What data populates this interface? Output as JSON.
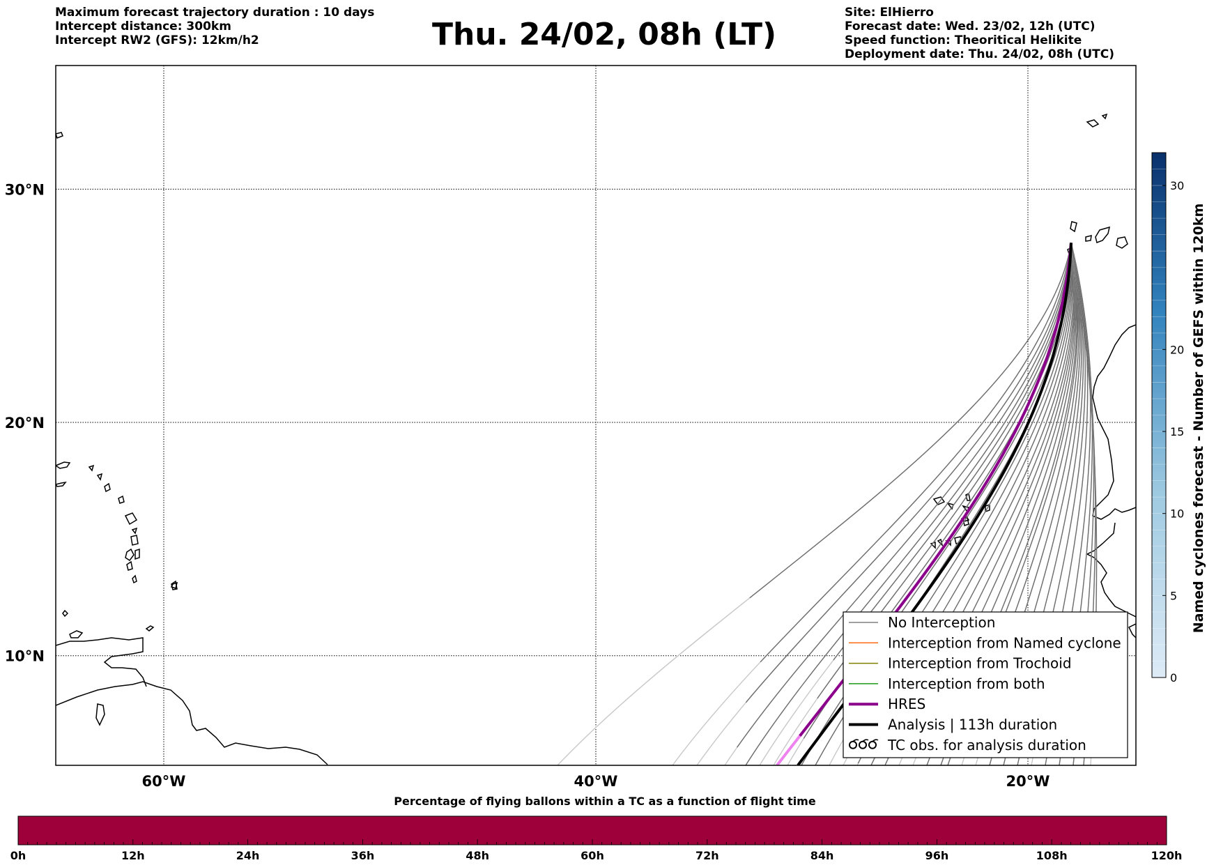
{
  "header_left": [
    "Maximum forecast trajectory duration : 10 days",
    "Intercept distance: 300km",
    "Intercept RW2 (GFS):  12km/h2"
  ],
  "title": "Thu. 24/02, 08h (LT)",
  "header_right": [
    "Site: ElHierro",
    "Forecast date: Wed. 23/02, 12h (UTC)",
    "Speed function: Theoritical Helikite",
    "Deployment date: Thu. 24/02, 08h (UTC)"
  ],
  "map": {
    "lat_labels": [
      "30°N",
      "20°N",
      "10°N"
    ],
    "lon_labels": [
      "60°W",
      "40°W",
      "20°W"
    ],
    "lat_values": [
      30,
      20,
      10
    ],
    "lon_values": [
      -60,
      -40,
      -20
    ],
    "extent": {
      "lon_min": -65,
      "lon_max": -15,
      "lat_min": 5.3,
      "lat_max": 35.3
    },
    "site": {
      "name": "ElHierro",
      "lon": -18.0,
      "lat": 27.7
    }
  },
  "legend": {
    "entries": [
      {
        "label": "No Interception",
        "color": "#808080",
        "style": "thin-line"
      },
      {
        "label": "Interception from Named cyclone",
        "color": "#ff6a13",
        "style": "thin-line"
      },
      {
        "label": "Interception from Trochoid",
        "color": "#808000",
        "style": "thin-line"
      },
      {
        "label": "Interception from both",
        "color": "#1a9a1a",
        "style": "thin-line"
      },
      {
        "label": "HRES",
        "color": "#8b008b",
        "style": "thick-line"
      },
      {
        "label": "Analysis | 113h duration",
        "color": "#000000",
        "style": "thick-line"
      },
      {
        "label": "TC obs. for analysis duration",
        "color": "#000000",
        "style": "cyclone-symbols"
      }
    ]
  },
  "colorbar_right": {
    "label": "Named cyclones forecast - Number of GEFS within 120km",
    "ticks": [
      "0",
      "5",
      "10",
      "15",
      "20",
      "30"
    ],
    "tick_values": [
      0,
      5,
      10,
      15,
      20,
      30
    ],
    "min": 0,
    "max": 32,
    "color_low": "#deebf7",
    "color_high": "#08306b"
  },
  "time_bar": {
    "title": "Percentage of flying ballons within a TC as a function of flight time",
    "ticks": [
      "0h",
      "12h",
      "24h",
      "36h",
      "48h",
      "60h",
      "72h",
      "84h",
      "96h",
      "108h",
      "120h"
    ],
    "fill_color": "#9e003a"
  }
}
